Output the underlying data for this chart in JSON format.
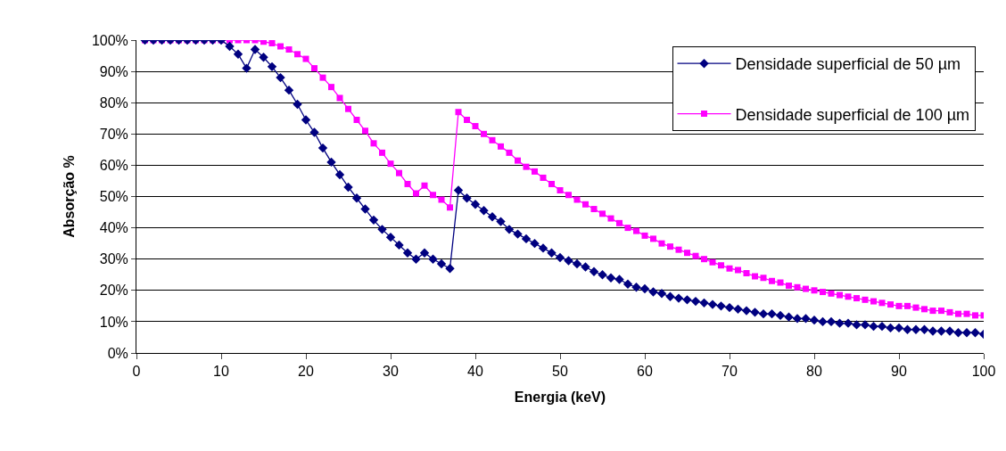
{
  "chart_data": {
    "type": "line",
    "xlabel": "Energia (keV)",
    "ylabel": "Absorção %",
    "x": [
      1,
      2,
      3,
      4,
      5,
      6,
      7,
      8,
      9,
      10,
      11,
      12,
      13,
      14,
      15,
      16,
      17,
      18,
      19,
      20,
      21,
      22,
      23,
      24,
      25,
      26,
      27,
      28,
      29,
      30,
      31,
      32,
      33,
      34,
      35,
      36,
      37,
      38,
      39,
      40,
      41,
      42,
      43,
      44,
      45,
      46,
      47,
      48,
      49,
      50,
      51,
      52,
      53,
      54,
      55,
      56,
      57,
      58,
      59,
      60,
      61,
      62,
      63,
      64,
      65,
      66,
      67,
      68,
      69,
      70,
      71,
      72,
      73,
      74,
      75,
      76,
      77,
      78,
      79,
      80,
      81,
      82,
      83,
      84,
      85,
      86,
      87,
      88,
      89,
      90,
      91,
      92,
      93,
      94,
      95,
      96,
      97,
      98,
      99,
      100
    ],
    "series": [
      {
        "name": "Densidade superficial de 50 µm",
        "color": "#000080",
        "marker": "diamond",
        "values": [
          100,
          100,
          100,
          100,
          100,
          100,
          100,
          100,
          100,
          100,
          98,
          95.5,
          91,
          97,
          94.5,
          91.5,
          88,
          84,
          79.5,
          74.5,
          70.5,
          65.5,
          61,
          57,
          53,
          49.5,
          46,
          42.5,
          39.5,
          37,
          34.5,
          32,
          30,
          32,
          30,
          28.5,
          27,
          52,
          49.5,
          47.5,
          45.5,
          43.5,
          42,
          39.5,
          38,
          36.5,
          35,
          33.5,
          32,
          30.5,
          29.5,
          28.5,
          27.5,
          26,
          25,
          24,
          23.5,
          22,
          21,
          20.5,
          19.5,
          19,
          18,
          17.5,
          17,
          16.5,
          16,
          15.5,
          15,
          14.5,
          14,
          13.5,
          13,
          12.5,
          12.5,
          12,
          11.5,
          11,
          11,
          10.5,
          10,
          10,
          9.5,
          9.5,
          9,
          9,
          8.5,
          8.5,
          8,
          8,
          7.5,
          7.5,
          7.5,
          7,
          7,
          7,
          6.5,
          6.5,
          6.5,
          6
        ]
      },
      {
        "name": "Densidade superficial de 100 µm",
        "color": "#ff00ff",
        "marker": "square",
        "values": [
          100,
          100,
          100,
          100,
          100,
          100,
          100,
          100,
          100,
          100,
          100,
          100,
          100,
          100,
          99.5,
          99,
          98,
          97,
          95.5,
          94,
          91,
          88,
          85,
          81.5,
          78,
          74.5,
          71,
          67,
          64,
          60.5,
          57.5,
          54,
          51,
          53.5,
          50.5,
          49,
          46.5,
          77,
          74.5,
          72.5,
          70,
          68,
          66,
          64,
          61.5,
          59.5,
          58,
          56,
          54,
          52,
          50.5,
          49,
          47.5,
          46,
          44.5,
          43,
          41.5,
          40,
          39,
          37.5,
          36.5,
          35,
          34,
          33,
          32,
          31,
          30,
          29,
          28,
          27,
          26.5,
          25.5,
          24.5,
          24,
          23,
          22.5,
          21.5,
          21,
          20.5,
          20,
          19.5,
          19,
          18.5,
          18,
          17.5,
          17,
          16.5,
          16,
          15.5,
          15,
          15,
          14.5,
          14,
          13.5,
          13.5,
          13,
          12.5,
          12.5,
          12,
          12
        ]
      }
    ],
    "xlim": [
      0,
      100
    ],
    "xticks": [
      0,
      10,
      20,
      30,
      40,
      50,
      60,
      70,
      80,
      90,
      100
    ],
    "ylim": [
      0,
      100
    ],
    "yticks": [
      {
        "value": 0,
        "label": "0%"
      },
      {
        "value": 10,
        "label": "10%"
      },
      {
        "value": 20,
        "label": "20%"
      },
      {
        "value": 30,
        "label": "30%"
      },
      {
        "value": 40,
        "label": "40%"
      },
      {
        "value": 50,
        "label": "50%"
      },
      {
        "value": 60,
        "label": "60%"
      },
      {
        "value": 70,
        "label": "70%"
      },
      {
        "value": 80,
        "label": "80%"
      },
      {
        "value": 90,
        "label": "90%"
      },
      {
        "value": 100,
        "label": "100%"
      }
    ],
    "grid": "y",
    "legend": "top right",
    "line_style": "solid"
  }
}
